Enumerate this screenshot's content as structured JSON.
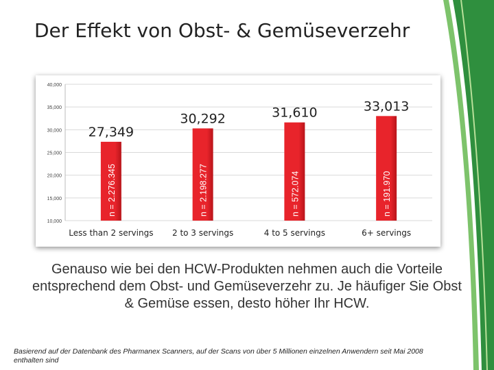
{
  "slide": {
    "title": "Der Effekt von Obst- & Gemüseverzehr",
    "body": "Genauso wie bei den HCW-Produkten nehmen auch die Vorteile entsprechend dem Obst- und Gemüseverzehr zu. Je häufiger Sie Obst & Gemüse essen, desto höher Ihr HCW.",
    "source": "Basierend auf der Datenbank des Pharmanex Scanners, auf der Scans von über 5 Millionen einzelnen Anwendern seit Mai 2008 enthalten sind"
  },
  "colors": {
    "bar": "#e8242b",
    "bar_shade": "#b8141a",
    "grid": "#d9d9d9",
    "deco_green": "#3aa64a"
  },
  "chart_data": {
    "type": "bar",
    "categories": [
      "Less than 2 servings",
      "2 to 3 servings",
      "4 to 5 servings",
      "6+ servings"
    ],
    "values": [
      27349,
      30292,
      31610,
      33013
    ],
    "value_labels": [
      "27,349",
      "30,292",
      "31,610",
      "33,013"
    ],
    "bar_annotations": [
      "n = 2.276.345",
      "n = 2.198.277",
      "n = 572.074",
      "n = 191.970"
    ],
    "ylim": [
      10000,
      40000
    ],
    "yticks": [
      10000,
      15000,
      20000,
      25000,
      30000,
      35000,
      40000
    ],
    "ytick_labels": [
      "10,000",
      "15,000",
      "20,000",
      "25,000",
      "30,000",
      "35,000",
      "40,000"
    ],
    "grid": true,
    "legend": "none"
  }
}
